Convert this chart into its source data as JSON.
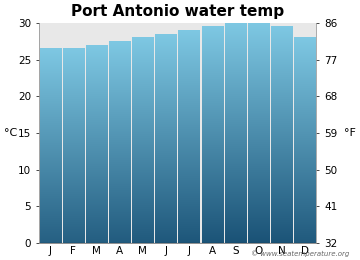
{
  "title": "Port Antonio water temp",
  "months": [
    "J",
    "F",
    "M",
    "A",
    "M",
    "J",
    "J",
    "A",
    "S",
    "O",
    "N",
    "D"
  ],
  "values_c": [
    26.5,
    26.5,
    27.0,
    27.5,
    28.0,
    28.5,
    29.0,
    29.5,
    30.0,
    30.0,
    29.5,
    28.0
  ],
  "ylim_c": [
    0,
    30
  ],
  "yticks_c": [
    0,
    5,
    10,
    15,
    20,
    25,
    30
  ],
  "yticks_f": [
    32,
    41,
    50,
    59,
    68,
    77,
    86
  ],
  "ylabel_left": "°C",
  "ylabel_right": "°F",
  "bar_color_top": "#7EC8E3",
  "bar_color_bottom": "#1A5276",
  "background_color": "#ffffff",
  "plot_bg_color": "#e8e8e8",
  "watermark": "© www.seatemperature.org",
  "title_fontsize": 11,
  "tick_fontsize": 7.5,
  "label_fontsize": 8,
  "bar_width": 0.92
}
